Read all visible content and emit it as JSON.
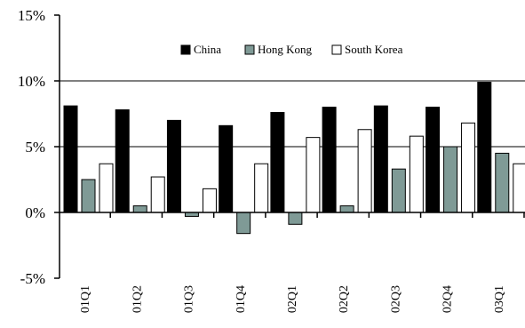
{
  "chart_data": {
    "type": "bar",
    "title": "",
    "xlabel": "",
    "ylabel": "",
    "categories": [
      "01Q1",
      "01Q2",
      "01Q3",
      "01Q4",
      "02Q1",
      "02Q2",
      "02Q3",
      "02Q4",
      "03Q1"
    ],
    "series": [
      {
        "name": "China",
        "color": "#000000",
        "values": [
          8.1,
          7.8,
          7.0,
          6.6,
          7.6,
          8.0,
          8.1,
          8.0,
          9.9
        ]
      },
      {
        "name": "Hong Kong",
        "color": "#7f9a96",
        "values": [
          2.5,
          0.5,
          -0.3,
          -1.6,
          -0.9,
          0.5,
          3.3,
          5.0,
          4.5
        ]
      },
      {
        "name": "South Korea",
        "color": "#ffffff",
        "values": [
          3.7,
          2.7,
          1.8,
          3.7,
          5.7,
          6.3,
          5.8,
          6.8,
          3.7
        ]
      }
    ],
    "ylim": [
      -5,
      15
    ],
    "yticks": [
      -5,
      0,
      5,
      10,
      15
    ],
    "ytick_labels": [
      "-5%",
      "0%",
      "5%",
      "10%",
      "15%"
    ],
    "gridlines_at": [
      5,
      10
    ],
    "grid": true,
    "legend_position": "top-center"
  }
}
